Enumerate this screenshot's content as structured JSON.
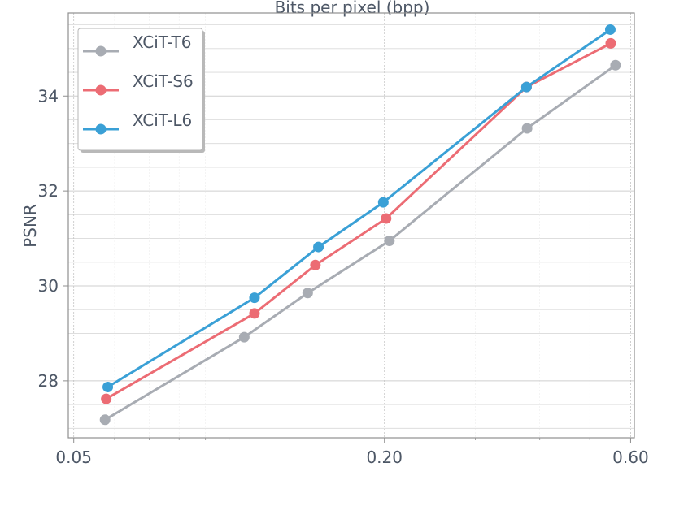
{
  "chart_data": {
    "type": "line",
    "title": "Bits per pixel (bpp)",
    "xlabel": "",
    "ylabel": "PSNR",
    "x_scale": "log",
    "xlim": [
      0.0488,
      0.61
    ],
    "ylim": [
      26.8,
      35.75
    ],
    "xticks": [
      0.05,
      0.2,
      0.6
    ],
    "xtick_labels": [
      "0.05",
      "0.20",
      "0.60"
    ],
    "yticks": [
      28,
      30,
      32,
      34
    ],
    "ytick_labels": [
      "28",
      "30",
      "32",
      "34"
    ],
    "grid": true,
    "legend_position": "top-left",
    "series": [
      {
        "name": "XCiT-T6",
        "color": "#a8acb3",
        "x": [
          0.0575,
          0.107,
          0.142,
          0.2045,
          0.378,
          0.561
        ],
        "y": [
          27.18,
          28.92,
          29.85,
          30.95,
          33.32,
          34.65
        ]
      },
      {
        "name": "XCiT-S6",
        "color": "#ec6c74",
        "x": [
          0.0578,
          0.112,
          0.147,
          0.2015,
          0.377,
          0.549
        ],
        "y": [
          27.62,
          29.42,
          30.44,
          31.42,
          34.19,
          35.11
        ]
      },
      {
        "name": "XCiT-L6",
        "color": "#3aa0d6",
        "x": [
          0.0582,
          0.112,
          0.149,
          0.199,
          0.377,
          0.548
        ],
        "y": [
          27.87,
          29.75,
          30.82,
          31.76,
          34.19,
          35.4
        ]
      }
    ]
  }
}
